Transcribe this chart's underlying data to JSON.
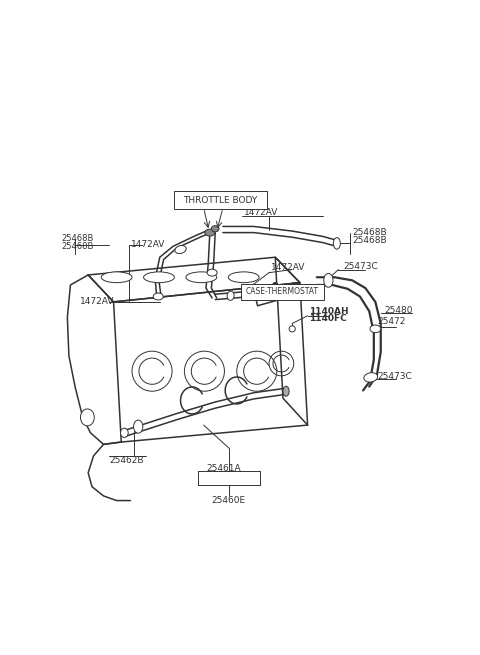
{
  "bg_color": "#ffffff",
  "lc": "#333333",
  "fig_w": 4.8,
  "fig_h": 6.55,
  "dpi": 100,
  "labels": {
    "THROTTLE_BODY": "THROTTLE BODY",
    "CASE_THERMOSTAT": "CASE-THERMOSTAT",
    "lbl_1472AV": "1472AV",
    "lbl_25468B": "25468B",
    "lbl_25473C": "25473C",
    "lbl_25472": "25472",
    "lbl_25480": "25480",
    "lbl_1140AH": "1140AH",
    "lbl_1140FC": "1140FC",
    "lbl_25461A": "25461A",
    "lbl_25462B": "25462B",
    "lbl_25460E": "25460E"
  }
}
